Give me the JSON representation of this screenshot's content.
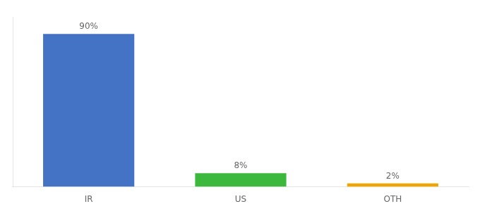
{
  "chart_data": {
    "type": "bar",
    "categories": [
      "IR",
      "US",
      "OTH"
    ],
    "values": [
      90,
      8,
      2
    ],
    "value_labels": [
      "90%",
      "8%",
      "2%"
    ],
    "data_labels": true,
    "colors": [
      "#4472c4",
      "#3cb93c",
      "#f0a500"
    ],
    "ylim": [
      0,
      100
    ],
    "tick_labels": "x",
    "grid": false
  }
}
